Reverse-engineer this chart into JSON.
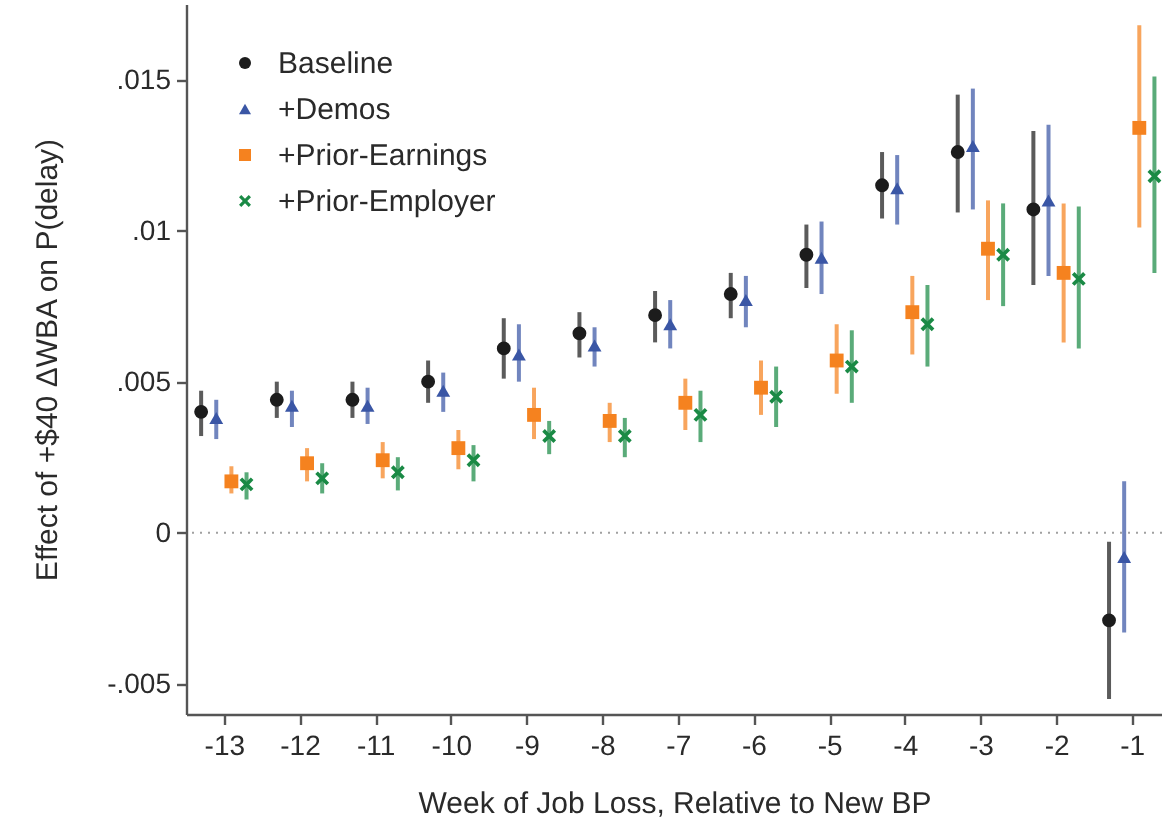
{
  "chart_data": {
    "type": "scatter",
    "xlabel": "Week of Job Loss, Relative to New BP",
    "ylabel": "Effect of +$40 ΔWBA on P(delay)",
    "xlim": [
      -13.5,
      -0.6
    ],
    "xticks": [
      -13,
      -12,
      -11,
      -10,
      -9,
      -8,
      -7,
      -6,
      -5,
      -4,
      -3,
      -2,
      -1
    ],
    "ylim": [
      -0.006,
      0.0175
    ],
    "yticks": [
      {
        "value": -0.005,
        "label": "-.005"
      },
      0,
      {
        "value": 0.005,
        "label": ".005"
      },
      {
        "value": 0.01,
        "label": ".01"
      },
      {
        "value": 0.015,
        "label": ".015"
      }
    ],
    "legend": "top left",
    "ref_lines": [
      {
        "axis": "y",
        "value": 0,
        "line_style": "dotted",
        "color": "#a0a0a0"
      }
    ],
    "series": [
      {
        "name": "Baseline",
        "color": "#1c1c1c",
        "marker": "circle",
        "x": [
          -13.3,
          -12.3,
          -11.3,
          -10.3,
          -9.3,
          -8.3,
          -7.3,
          -6.3,
          -5.3,
          -4.3,
          -3.3,
          -2.3,
          -1.3
        ],
        "values": [
          0.004,
          0.0044,
          0.0044,
          0.005,
          0.0061,
          0.0066,
          0.0072,
          0.0079,
          0.0092,
          0.0115,
          0.0126,
          0.0107,
          -0.0029
        ],
        "errors": [
          [
            0.0032,
            0.0047
          ],
          [
            0.0038,
            0.005
          ],
          [
            0.0038,
            0.005
          ],
          [
            0.0043,
            0.0057
          ],
          [
            0.0051,
            0.0071
          ],
          [
            0.0058,
            0.0073
          ],
          [
            0.0063,
            0.008
          ],
          [
            0.0071,
            0.0086
          ],
          [
            0.0081,
            0.0102
          ],
          [
            0.0104,
            0.0126
          ],
          [
            0.0106,
            0.0145
          ],
          [
            0.0082,
            0.0133
          ],
          [
            -0.0055,
            -0.0003
          ]
        ]
      },
      {
        "name": "+Demos",
        "color": "#3a56a5",
        "marker": "triangle",
        "x": [
          -13.1,
          -12.1,
          -11.1,
          -10.1,
          -9.1,
          -8.1,
          -7.1,
          -6.1,
          -5.1,
          -4.1,
          -3.1,
          -2.1,
          -1.1
        ],
        "values": [
          0.0038,
          0.0042,
          0.0042,
          0.0047,
          0.0059,
          0.0062,
          0.0069,
          0.0077,
          0.0091,
          0.0114,
          0.0128,
          0.011,
          -0.0008
        ],
        "errors": [
          [
            0.0031,
            0.0044
          ],
          [
            0.0035,
            0.0047
          ],
          [
            0.0036,
            0.0048
          ],
          [
            0.004,
            0.0053
          ],
          [
            0.005,
            0.0069
          ],
          [
            0.0055,
            0.0068
          ],
          [
            0.0061,
            0.0077
          ],
          [
            0.0068,
            0.0085
          ],
          [
            0.0079,
            0.0103
          ],
          [
            0.0102,
            0.0125
          ],
          [
            0.0107,
            0.0147
          ],
          [
            0.0085,
            0.0135
          ],
          [
            -0.0033,
            0.0017
          ]
        ]
      },
      {
        "name": "+Prior-Earnings",
        "color": "#f5821f",
        "marker": "square",
        "x": [
          -12.9,
          -11.9,
          -10.9,
          -9.9,
          -8.9,
          -7.9,
          -6.9,
          -5.9,
          -4.9,
          -3.9,
          -2.9,
          -1.9,
          -0.9
        ],
        "values": [
          0.0017,
          0.0023,
          0.0024,
          0.0028,
          0.0039,
          0.0037,
          0.0043,
          0.0048,
          0.0057,
          0.0073,
          0.0094,
          0.0086,
          0.0134
        ],
        "errors": [
          [
            0.0013,
            0.0022
          ],
          [
            0.0017,
            0.0028
          ],
          [
            0.0018,
            0.003
          ],
          [
            0.0021,
            0.0034
          ],
          [
            0.0031,
            0.0048
          ],
          [
            0.003,
            0.0043
          ],
          [
            0.0034,
            0.0051
          ],
          [
            0.0039,
            0.0057
          ],
          [
            0.0046,
            0.0069
          ],
          [
            0.0059,
            0.0085
          ],
          [
            0.0077,
            0.011
          ],
          [
            0.0063,
            0.0109
          ],
          [
            0.0101,
            0.0168
          ]
        ]
      },
      {
        "name": "+Prior-Employer",
        "color": "#1a8a45",
        "marker": "cross",
        "x": [
          -12.7,
          -11.7,
          -10.7,
          -9.7,
          -8.7,
          -7.7,
          -6.7,
          -5.7,
          -4.7,
          -3.7,
          -2.7,
          -1.7,
          -0.7
        ],
        "values": [
          0.0016,
          0.0018,
          0.002,
          0.0024,
          0.0032,
          0.0032,
          0.0039,
          0.0045,
          0.0055,
          0.0069,
          0.0092,
          0.0084,
          0.0118
        ],
        "errors": [
          [
            0.0011,
            0.002
          ],
          [
            0.0013,
            0.0023
          ],
          [
            0.0014,
            0.0025
          ],
          [
            0.0017,
            0.0029
          ],
          [
            0.0026,
            0.0037
          ],
          [
            0.0025,
            0.0038
          ],
          [
            0.003,
            0.0047
          ],
          [
            0.0035,
            0.0055
          ],
          [
            0.0043,
            0.0067
          ],
          [
            0.0055,
            0.0082
          ],
          [
            0.0075,
            0.0109
          ],
          [
            0.0061,
            0.0108
          ],
          [
            0.0086,
            0.0151
          ]
        ]
      }
    ]
  }
}
